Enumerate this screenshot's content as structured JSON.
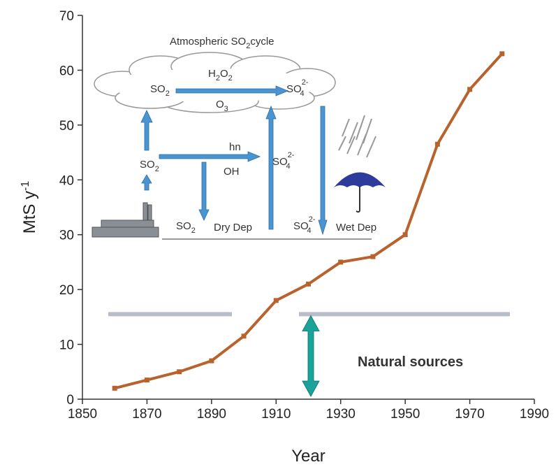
{
  "chart_data": {
    "type": "line",
    "x": [
      1860,
      1870,
      1880,
      1890,
      1900,
      1910,
      1920,
      1930,
      1940,
      1950,
      1960,
      1970,
      1980
    ],
    "series": [
      {
        "name": null,
        "color": "#b8632e",
        "values": [
          2,
          3.5,
          5,
          7,
          11.5,
          18,
          21,
          25,
          26,
          30,
          46.5,
          56.5,
          63
        ]
      }
    ],
    "xlim": [
      1850,
      1990
    ],
    "xticks": [
      1850,
      1870,
      1890,
      1910,
      1930,
      1950,
      1970,
      1990
    ],
    "ylim": [
      0,
      70
    ],
    "yticks": [
      0,
      10,
      20,
      30,
      40,
      50,
      60,
      70
    ],
    "xlabel": "Year",
    "ylabel": "MtS y",
    "ylabel_superscript": "-1",
    "natural_sources": {
      "label": "Natural sources",
      "value": 15.5,
      "color": "#b8bec8",
      "arrow_color": "#1aa39a"
    },
    "inset": {
      "title": {
        "text": "Atmospheric SO",
        "sub": "2",
        "after": "cycle"
      },
      "labels": [
        {
          "text": "SO",
          "sub": "2"
        },
        {
          "text": "H",
          "sub": "2",
          "after": "O",
          "sub2": "2"
        },
        {
          "text": "O",
          "sub": "3"
        },
        {
          "text": "SO",
          "sub": "4",
          "sup": "2-"
        },
        {
          "text": "SO",
          "sub": "2"
        },
        {
          "text": "hn"
        },
        {
          "text": "OH"
        },
        {
          "text": "SO",
          "sub": "4",
          "sup": "2-"
        },
        {
          "text": "SO",
          "sub": "2"
        },
        {
          "text": "Dry Dep"
        },
        {
          "text": "SO",
          "sub": "4",
          "sup": "2-"
        },
        {
          "text": "Wet Dep"
        }
      ]
    }
  }
}
